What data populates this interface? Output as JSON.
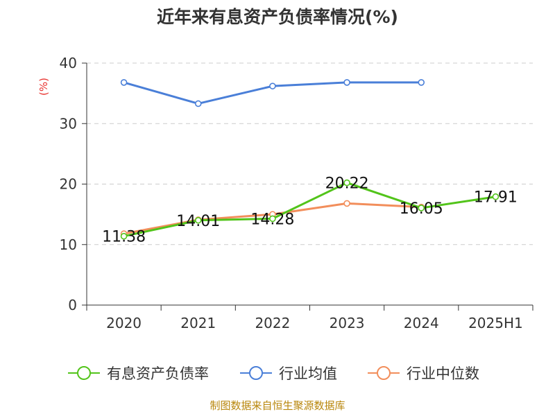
{
  "chart_data": {
    "type": "line",
    "title": "近年来有息资产负债率情况(%)",
    "ylabel": "(%)",
    "xlabel": "",
    "categories": [
      "2020",
      "2021",
      "2022",
      "2023",
      "2024",
      "2025H1"
    ],
    "ylim": [
      0,
      40
    ],
    "yticks": [
      0,
      10,
      20,
      30,
      40
    ],
    "grid": true,
    "legend_position": "bottom",
    "series": [
      {
        "name": "有息资产负债率",
        "color": "#52c41a",
        "values": [
          11.38,
          14.01,
          14.28,
          20.22,
          16.05,
          17.91
        ],
        "labels": [
          "11.38",
          "14.01",
          "14.28",
          "20.22",
          "16.05",
          "17.91"
        ]
      },
      {
        "name": "行业均值",
        "color": "#4a7fd8",
        "values": [
          36.8,
          33.3,
          36.2,
          36.8,
          36.8,
          null
        ]
      },
      {
        "name": "行业中位数",
        "color": "#f28e5b",
        "values": [
          11.8,
          14.1,
          15.0,
          16.8,
          16.2,
          null
        ]
      }
    ]
  },
  "source": "制图数据来自恒生聚源数据库"
}
